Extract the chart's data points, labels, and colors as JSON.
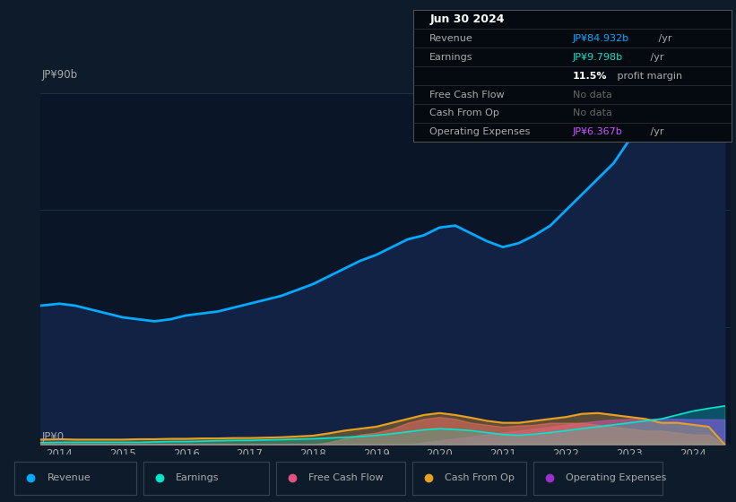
{
  "bg_color": "#0d1b2a",
  "chart_bg": "#0a1628",
  "y_label_top": "JP¥90b",
  "y_label_bottom": "JP¥0",
  "x_ticks": [
    2014,
    2015,
    2016,
    2017,
    2018,
    2019,
    2020,
    2021,
    2022,
    2023,
    2024
  ],
  "years": [
    2013.7,
    2014.0,
    2014.25,
    2014.5,
    2014.75,
    2015.0,
    2015.25,
    2015.5,
    2015.75,
    2016.0,
    2016.25,
    2016.5,
    2016.75,
    2017.0,
    2017.25,
    2017.5,
    2017.75,
    2018.0,
    2018.25,
    2018.5,
    2018.75,
    2019.0,
    2019.25,
    2019.5,
    2019.75,
    2020.0,
    2020.25,
    2020.5,
    2020.75,
    2021.0,
    2021.25,
    2021.5,
    2021.75,
    2022.0,
    2022.25,
    2022.5,
    2022.75,
    2023.0,
    2023.25,
    2023.5,
    2023.75,
    2024.0,
    2024.25,
    2024.5
  ],
  "revenue": [
    35.5,
    36.0,
    35.5,
    34.5,
    33.5,
    32.5,
    32.0,
    31.5,
    32.0,
    33.0,
    33.5,
    34.0,
    35.0,
    36.0,
    37.0,
    38.0,
    39.5,
    41.0,
    43.0,
    45.0,
    47.0,
    48.5,
    50.5,
    52.5,
    53.5,
    55.5,
    56.0,
    54.0,
    52.0,
    50.5,
    51.5,
    53.5,
    56.0,
    60.0,
    64.0,
    68.0,
    72.0,
    78.0,
    83.0,
    85.0,
    83.0,
    80.5,
    82.0,
    84.9
  ],
  "earnings": [
    0.4,
    0.5,
    0.5,
    0.5,
    0.5,
    0.5,
    0.5,
    0.6,
    0.7,
    0.7,
    0.8,
    0.9,
    1.0,
    1.0,
    1.1,
    1.2,
    1.3,
    1.4,
    1.6,
    1.8,
    2.0,
    2.3,
    2.7,
    3.2,
    3.7,
    4.0,
    3.8,
    3.5,
    3.0,
    2.5,
    2.3,
    2.6,
    3.0,
    3.5,
    4.0,
    4.5,
    5.0,
    5.5,
    6.0,
    6.5,
    7.5,
    8.5,
    9.2,
    9.8
  ],
  "cash_from_op": [
    1.2,
    1.3,
    1.2,
    1.2,
    1.2,
    1.2,
    1.3,
    1.3,
    1.4,
    1.4,
    1.5,
    1.5,
    1.6,
    1.6,
    1.7,
    1.8,
    2.0,
    2.2,
    2.8,
    3.5,
    4.0,
    4.5,
    5.5,
    6.5,
    7.5,
    8.0,
    7.5,
    6.8,
    6.0,
    5.5,
    5.5,
    6.0,
    6.5,
    7.0,
    7.8,
    8.0,
    7.5,
    7.0,
    6.5,
    5.5,
    5.5,
    5.0,
    4.5,
    0.0
  ],
  "free_cash_flow": [
    0.0,
    0.0,
    0.0,
    0.0,
    0.0,
    0.0,
    0.0,
    0.0,
    0.0,
    0.0,
    0.0,
    0.0,
    0.0,
    0.0,
    0.0,
    0.0,
    0.0,
    0.0,
    0.5,
    1.5,
    2.5,
    3.0,
    4.0,
    5.5,
    6.5,
    7.0,
    6.5,
    5.5,
    5.0,
    4.5,
    4.8,
    5.0,
    5.5,
    5.5,
    5.5,
    5.0,
    4.5,
    4.0,
    3.5,
    3.5,
    3.0,
    2.5,
    2.5,
    0.0
  ],
  "operating_expenses": [
    0.0,
    0.0,
    0.0,
    0.0,
    0.0,
    0.0,
    0.0,
    0.0,
    0.0,
    0.0,
    0.0,
    0.0,
    0.0,
    0.0,
    0.0,
    0.0,
    0.0,
    0.0,
    0.0,
    0.0,
    0.0,
    0.0,
    0.0,
    0.0,
    0.5,
    1.0,
    1.5,
    2.0,
    2.5,
    3.0,
    3.5,
    4.0,
    4.5,
    5.0,
    5.5,
    6.0,
    6.3,
    6.5,
    6.5,
    6.5,
    6.5,
    6.4,
    6.4,
    6.367
  ],
  "revenue_color": "#00aaff",
  "revenue_fill": "#112244",
  "earnings_color": "#00e5cc",
  "earnings_fill": "#00e5cc",
  "free_cash_flow_color": "#e05080",
  "cash_from_op_color": "#e8a020",
  "operating_expenses_color": "#9b30d0",
  "text_color": "#aaaaaa",
  "white_color": "#ffffff",
  "grid_color": "#1a3050",
  "ylim": [
    0,
    90
  ],
  "xlim": [
    2013.7,
    2024.6
  ],
  "legend_items": [
    "Revenue",
    "Earnings",
    "Free Cash Flow",
    "Cash From Op",
    "Operating Expenses"
  ],
  "legend_colors": [
    "#00aaff",
    "#00e5cc",
    "#e05080",
    "#e8a020",
    "#9b30d0"
  ],
  "info_rows": [
    {
      "label": "Jun 30 2024",
      "value": "",
      "suffix": "",
      "label_color": "#ffffff",
      "value_color": "#ffffff",
      "is_header": true
    },
    {
      "label": "Revenue",
      "value": "JP¥84.932b",
      "suffix": " /yr",
      "label_color": "#aaaaaa",
      "value_color": "#00aaff",
      "is_header": false
    },
    {
      "label": "Earnings",
      "value": "JP¥9.798b",
      "suffix": " /yr",
      "label_color": "#aaaaaa",
      "value_color": "#00e5cc",
      "is_header": false
    },
    {
      "label": "",
      "value": "11.5%",
      "suffix": " profit margin",
      "label_color": "#aaaaaa",
      "value_color": "#ffffff",
      "is_header": false
    },
    {
      "label": "Free Cash Flow",
      "value": "No data",
      "suffix": "",
      "label_color": "#aaaaaa",
      "value_color": "#666666",
      "is_header": false
    },
    {
      "label": "Cash From Op",
      "value": "No data",
      "suffix": "",
      "label_color": "#aaaaaa",
      "value_color": "#666666",
      "is_header": false
    },
    {
      "label": "Operating Expenses",
      "value": "JP¥6.367b",
      "suffix": " /yr",
      "label_color": "#aaaaaa",
      "value_color": "#cc55ff",
      "is_header": false
    }
  ]
}
